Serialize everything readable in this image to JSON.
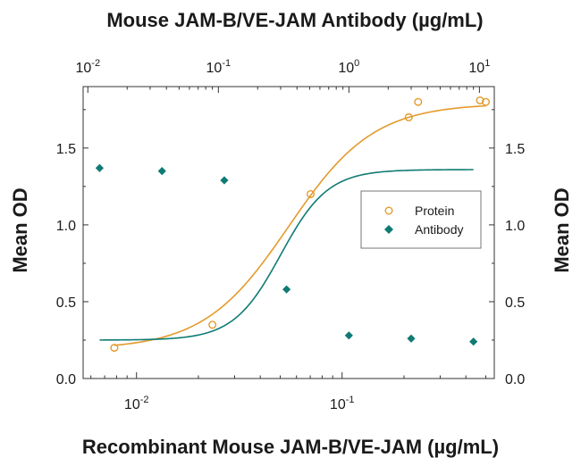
{
  "chart_data": {
    "type": "line",
    "top_title": "Mouse JAM-B/VE-JAM Antibody (µg/mL)",
    "xlabel": "Recombinant Mouse JAM-B/VE-JAM (µg/mL)",
    "ylabel_left": "Mean OD",
    "ylabel_right": "Mean OD",
    "x_scale": "log",
    "x_bottom_range": [
      0.0055,
      0.55
    ],
    "x_top_range": [
      0.0092,
      13.0
    ],
    "ylim": [
      0,
      1.9
    ],
    "y_ticks": [
      0,
      0.5,
      1.0,
      1.5
    ],
    "y_tick_labels": [
      "0.0",
      "0.5",
      "1.0",
      "1.5"
    ],
    "x_bottom_ticks": [
      {
        "value": 0.01,
        "base": "10",
        "exp": "-2"
      },
      {
        "value": 0.1,
        "base": "10",
        "exp": "-1"
      }
    ],
    "x_top_ticks": [
      {
        "value": 0.01,
        "base": "10",
        "exp": "-2"
      },
      {
        "value": 0.1,
        "base": "10",
        "exp": "-1"
      },
      {
        "value": 1,
        "base": "10",
        "exp": "0"
      },
      {
        "value": 10,
        "base": "10",
        "exp": "1"
      }
    ],
    "grid": false,
    "legend_position": "right-center",
    "series": [
      {
        "name": "Protein",
        "axis": "bottom",
        "marker": "open-circle",
        "color": "#e39a2b",
        "x": [
          0.0078,
          0.0234,
          0.0703,
          0.2109,
          0.2344,
          0.4688,
          0.5
        ],
        "y": [
          0.2,
          0.35,
          1.2,
          1.7,
          1.8,
          1.81,
          1.8
        ],
        "fit": {
          "bottom": 0.19,
          "top": 1.79,
          "ec50": 0.055,
          "hill": 2.1
        }
      },
      {
        "name": "Antibody",
        "axis": "top",
        "marker": "filled-diamond",
        "color": "#0f7b74",
        "x": [
          0.0123,
          0.037,
          0.111,
          0.333,
          1.0,
          3.0,
          9.0
        ],
        "y": [
          1.37,
          1.35,
          1.29,
          0.58,
          0.28,
          0.26,
          0.24
        ],
        "fit": {
          "bottom": 0.25,
          "top": 1.36,
          "ec50": 0.3,
          "hill": 2.4
        }
      }
    ]
  }
}
